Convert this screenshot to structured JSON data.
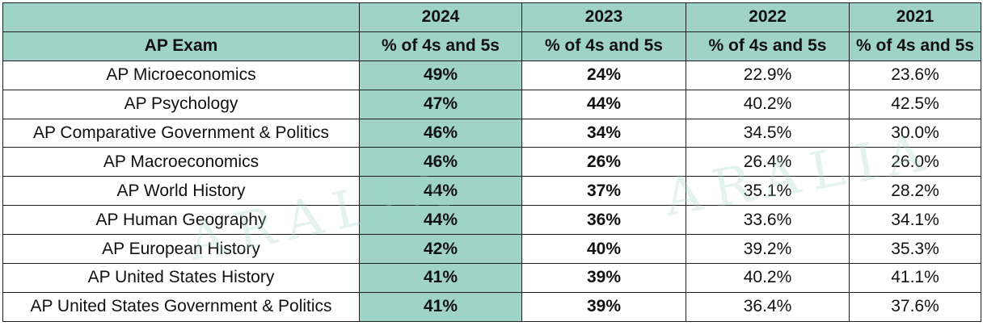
{
  "header": {
    "years": [
      "2024",
      "2023",
      "2022",
      "2021"
    ],
    "exam_label": "AP Exam",
    "metric": "% of 4s and 5s"
  },
  "rows": [
    {
      "exam": "AP Microeconomics",
      "y2024": "49%",
      "y2023": "24%",
      "y2022": "22.9%",
      "y2021": "23.6%"
    },
    {
      "exam": "AP Psychology",
      "y2024": "47%",
      "y2023": "44%",
      "y2022": "40.2%",
      "y2021": "42.5%"
    },
    {
      "exam": "AP Comparative Government & Politics",
      "y2024": "46%",
      "y2023": "34%",
      "y2022": "34.5%",
      "y2021": "30.0%"
    },
    {
      "exam": "AP Macroeconomics",
      "y2024": "46%",
      "y2023": "26%",
      "y2022": "26.4%",
      "y2021": "26.0%"
    },
    {
      "exam": "AP World History",
      "y2024": "44%",
      "y2023": "37%",
      "y2022": "35.1%",
      "y2021": "28.2%"
    },
    {
      "exam": "AP Human Geography",
      "y2024": "44%",
      "y2023": "36%",
      "y2022": "33.6%",
      "y2021": "34.1%"
    },
    {
      "exam": "AP European History",
      "y2024": "42%",
      "y2023": "40%",
      "y2022": "39.2%",
      "y2021": "35.3%"
    },
    {
      "exam": "AP United States History",
      "y2024": "41%",
      "y2023": "39%",
      "y2022": "40.2%",
      "y2021": "41.1%"
    },
    {
      "exam": "AP United States Government & Politics",
      "y2024": "41%",
      "y2023": "39%",
      "y2022": "36.4%",
      "y2021": "37.6%"
    }
  ],
  "watermark": "ARALIA",
  "colors": {
    "highlight": "#9fd3c8",
    "border": "#1f1f1f"
  }
}
